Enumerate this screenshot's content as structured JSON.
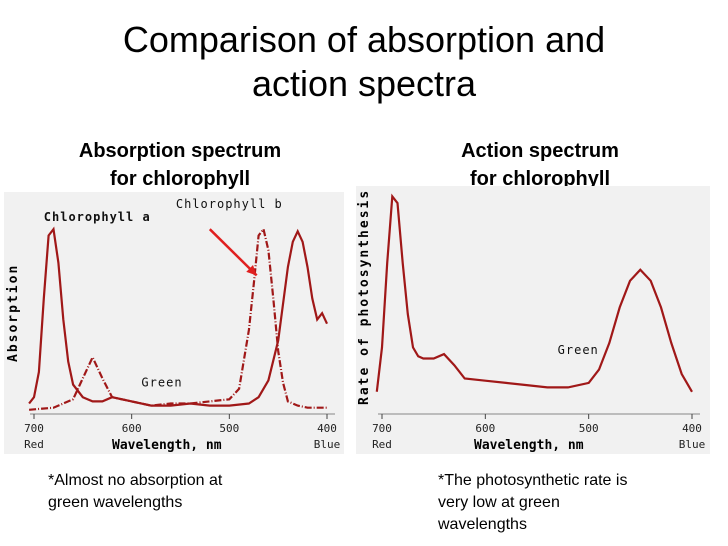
{
  "title_line1": "Comparison of absorption and",
  "title_line2": "action spectra",
  "left": {
    "heading_line1": "Absorption spectrum",
    "heading_line2": "for chlorophyll",
    "note_line1": "*Almost no absorption at",
    "note_line2": "green wavelengths"
  },
  "right": {
    "heading_line1": "Action spectrum",
    "heading_line2": "for chlorophyll",
    "note_line1": "*The photosynthetic rate is",
    "note_line2": "very low at green",
    "note_line3": "wavelengths"
  },
  "chart_data": [
    {
      "type": "line",
      "title": "Absorption spectrum for chlorophyll",
      "xlabel": "Wavelength, nm",
      "ylabel": "Absorption",
      "xlim": [
        700,
        400
      ],
      "ylim": [
        0,
        1
      ],
      "x_ticks": [
        {
          "x": 700,
          "label": "700",
          "sub": "Red"
        },
        {
          "x": 600,
          "label": "600",
          "sub": ""
        },
        {
          "x": 500,
          "label": "500",
          "sub": ""
        },
        {
          "x": 400,
          "label": "400",
          "sub": "Blue"
        }
      ],
      "annotations": [
        {
          "text": "Chlorophyll a",
          "x": 690,
          "y": 0.92
        },
        {
          "text": "Chlorophyll b",
          "x": 500,
          "y": 0.98
        },
        {
          "text": "Green",
          "x": 590,
          "y": 0.13
        }
      ],
      "color": "#a01818",
      "arrow_color": "#e02020",
      "series": [
        {
          "name": "Chlorophyll a",
          "x": [
            705,
            700,
            695,
            690,
            685,
            680,
            675,
            670,
            665,
            660,
            650,
            640,
            630,
            620,
            600,
            580,
            560,
            540,
            520,
            500,
            480,
            470,
            460,
            450,
            440,
            435,
            430,
            425,
            420,
            415,
            410,
            405,
            400
          ],
          "y": [
            0.05,
            0.08,
            0.2,
            0.55,
            0.85,
            0.88,
            0.72,
            0.45,
            0.25,
            0.14,
            0.08,
            0.06,
            0.06,
            0.08,
            0.06,
            0.04,
            0.04,
            0.05,
            0.04,
            0.04,
            0.05,
            0.08,
            0.16,
            0.35,
            0.7,
            0.82,
            0.87,
            0.82,
            0.7,
            0.55,
            0.45,
            0.48,
            0.43
          ]
        },
        {
          "name": "Chlorophyll b",
          "x": [
            705,
            680,
            660,
            650,
            640,
            630,
            620,
            600,
            580,
            560,
            540,
            520,
            500,
            490,
            480,
            475,
            470,
            465,
            460,
            455,
            450,
            445,
            440,
            430,
            420,
            410,
            400
          ],
          "y": [
            0.02,
            0.03,
            0.07,
            0.17,
            0.27,
            0.17,
            0.08,
            0.06,
            0.04,
            0.05,
            0.05,
            0.06,
            0.07,
            0.12,
            0.4,
            0.62,
            0.85,
            0.88,
            0.78,
            0.55,
            0.3,
            0.15,
            0.06,
            0.04,
            0.03,
            0.03,
            0.03
          ]
        }
      ]
    },
    {
      "type": "line",
      "title": "Action spectrum for chlorophyll",
      "xlabel": "Wavelength, nm",
      "ylabel": "Rate of photosynthesis",
      "xlim": [
        700,
        400
      ],
      "ylim": [
        0,
        1
      ],
      "x_ticks": [
        {
          "x": 700,
          "label": "700",
          "sub": "Red"
        },
        {
          "x": 600,
          "label": "600",
          "sub": ""
        },
        {
          "x": 500,
          "label": "500",
          "sub": ""
        },
        {
          "x": 400,
          "label": "400",
          "sub": "Blue"
        }
      ],
      "annotations": [
        {
          "text": "Green",
          "x": 530,
          "y": 0.27
        }
      ],
      "color": "#a01818",
      "series": [
        {
          "name": "Action spectrum",
          "x": [
            705,
            700,
            695,
            690,
            685,
            680,
            675,
            670,
            665,
            660,
            650,
            640,
            630,
            620,
            600,
            580,
            560,
            540,
            520,
            500,
            490,
            480,
            470,
            460,
            450,
            440,
            430,
            420,
            410,
            400
          ],
          "y": [
            0.1,
            0.3,
            0.68,
            0.98,
            0.95,
            0.68,
            0.45,
            0.3,
            0.26,
            0.25,
            0.25,
            0.27,
            0.22,
            0.16,
            0.15,
            0.14,
            0.13,
            0.12,
            0.12,
            0.14,
            0.2,
            0.32,
            0.48,
            0.6,
            0.65,
            0.6,
            0.48,
            0.32,
            0.18,
            0.1
          ]
        }
      ]
    }
  ]
}
